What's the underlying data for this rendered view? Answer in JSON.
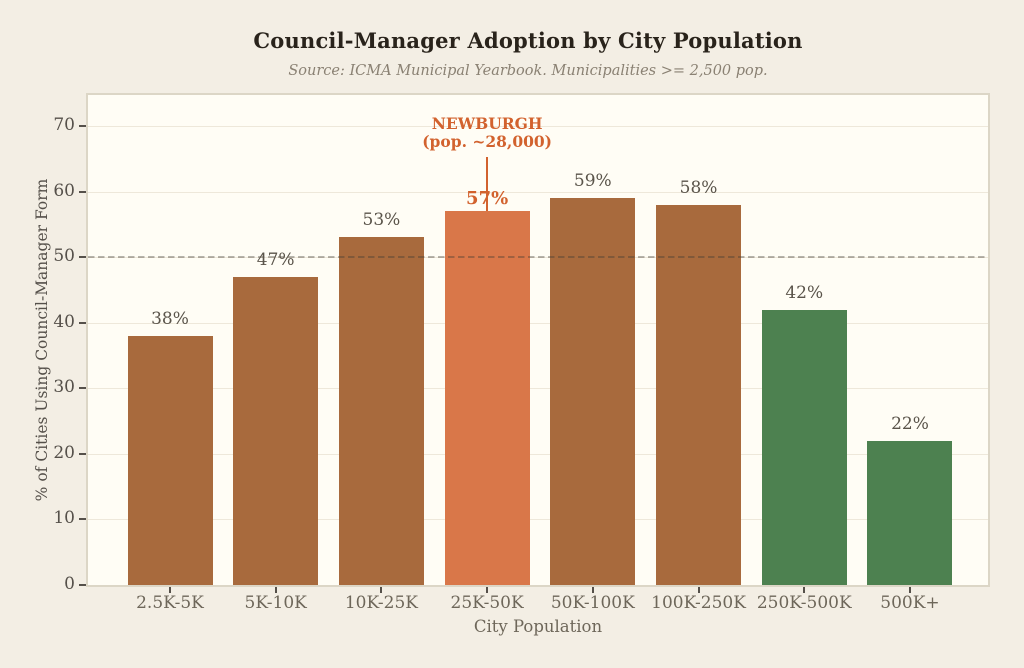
{
  "chart_data": {
    "type": "bar",
    "title": "Council-Manager Adoption by City Population",
    "subtitle": "Source: ICMA Municipal Yearbook. Municipalities >= 2,500 pop.",
    "categories": [
      "2.5K-5K",
      "5K-10K",
      "10K-25K",
      "25K-50K",
      "50K-100K",
      "100K-250K",
      "250K-500K",
      "500K+"
    ],
    "values": [
      38,
      47,
      53,
      57,
      59,
      58,
      42,
      22
    ],
    "value_labels": [
      "38%",
      "47%",
      "53%",
      "57%",
      "59%",
      "58%",
      "42%",
      "22%"
    ],
    "bar_color_keys": [
      "brown",
      "brown",
      "brown",
      "highlight",
      "brown",
      "brown",
      "green",
      "green"
    ],
    "colors": {
      "brown": "#a86a3d",
      "highlight": "#d97749",
      "green": "#4d8150"
    },
    "xlabel": "City Population",
    "ylabel": "% of Cities Using Council-Manager Form",
    "ylim": [
      0,
      75
    ],
    "yticks": [
      0,
      10,
      20,
      30,
      40,
      50,
      60,
      70
    ],
    "grid": "horizontal",
    "reference_line": {
      "value": 50,
      "style": "dashed"
    },
    "annotation": {
      "target_category": "25K-50K",
      "lines": [
        "NEWBURGH",
        "(pop. ~28,000)"
      ],
      "color": "#d2622e"
    }
  }
}
